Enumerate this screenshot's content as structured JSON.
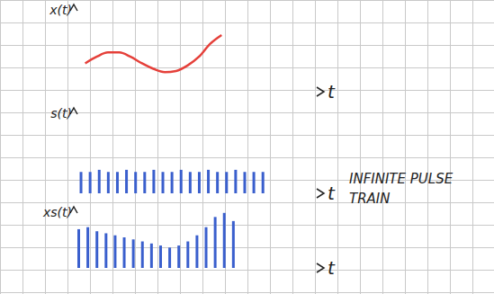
{
  "chart_data": [
    {
      "type": "line",
      "ylabel": "x(t)",
      "xlabel": "t",
      "color": "#e5403a",
      "tick_labels": false,
      "xlim": [
        0,
        11
      ],
      "ylim": [
        0,
        4
      ],
      "x": [
        0.5,
        1,
        1.5,
        2,
        2.5,
        3,
        3.5,
        4,
        4.5,
        5,
        5.5,
        6,
        6.5
      ],
      "values": [
        1.3,
        1.6,
        1.8,
        1.8,
        1.6,
        1.3,
        1.05,
        0.9,
        0.95,
        1.2,
        1.6,
        2.2,
        2.6
      ]
    },
    {
      "type": "bar",
      "ylabel": "s(t)",
      "xlabel": "t",
      "color": "#3a5fcd",
      "tick_labels": false,
      "annotation": "INFINITE PULSE TRAIN",
      "xlim": [
        0,
        11
      ],
      "ylim": [
        0,
        4
      ],
      "x": [
        0.3,
        0.7,
        1.1,
        1.5,
        1.9,
        2.3,
        2.7,
        3.1,
        3.5,
        3.9,
        4.3,
        4.7,
        5.1,
        5.5,
        5.9,
        6.3,
        6.7,
        7.1,
        7.5,
        7.9,
        8.3
      ],
      "values": [
        1,
        1,
        1.1,
        1,
        1,
        1.1,
        1,
        1,
        1.1,
        1,
        1,
        1.1,
        1,
        1,
        1.1,
        1,
        1,
        1.1,
        1,
        1,
        1
      ]
    },
    {
      "type": "bar",
      "ylabel": "xs(t)",
      "xlabel": "t",
      "color": "#3a5fcd",
      "tick_labels": false,
      "xlim": [
        0,
        11
      ],
      "ylim": [
        0,
        3
      ],
      "x": [
        0.2,
        0.6,
        1.0,
        1.4,
        1.8,
        2.2,
        2.6,
        3.0,
        3.4,
        3.8,
        4.2,
        4.6,
        5.0,
        5.4,
        5.8,
        6.2,
        6.6,
        7.0
      ],
      "values": [
        1.9,
        2.0,
        1.8,
        1.7,
        1.6,
        1.5,
        1.4,
        1.3,
        1.2,
        1.1,
        1.0,
        1.1,
        1.3,
        1.6,
        2.0,
        2.5,
        2.7,
        2.3
      ]
    }
  ]
}
